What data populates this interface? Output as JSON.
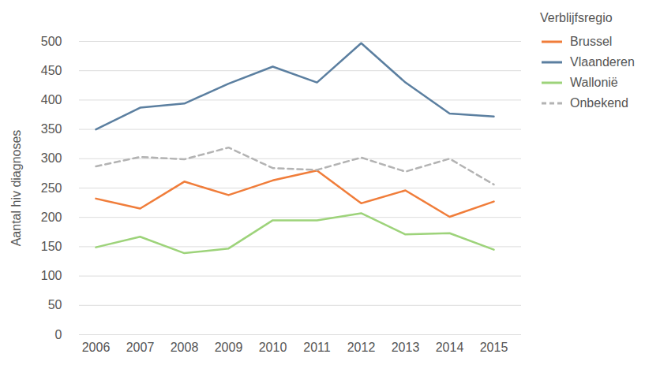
{
  "chart_data": {
    "type": "line",
    "y_label": "Aantal hiv diagnoses",
    "legend_title": "Verblijfsregio",
    "x": [
      2006,
      2007,
      2008,
      2009,
      2010,
      2011,
      2012,
      2013,
      2014,
      2015
    ],
    "xticks": [
      2006,
      2007,
      2008,
      2009,
      2010,
      2011,
      2012,
      2013,
      2014,
      2015
    ],
    "xlim": [
      2006,
      2015
    ],
    "ylim": [
      0,
      500
    ],
    "yticks": [
      0,
      50,
      100,
      150,
      200,
      250,
      300,
      350,
      400,
      450,
      500
    ],
    "grid": true,
    "legend": "right",
    "series": [
      {
        "name": "Brussel",
        "color": "#f07d3a",
        "line_style": "solid",
        "values": [
          232,
          215,
          261,
          238,
          263,
          280,
          224,
          246,
          201,
          227
        ]
      },
      {
        "name": "Vlaanderen",
        "color": "#5b7fa0",
        "line_style": "solid",
        "values": [
          350,
          387,
          394,
          428,
          457,
          430,
          497,
          430,
          377,
          372
        ]
      },
      {
        "name": "Wallonië",
        "color": "#9dd37a",
        "line_style": "solid",
        "values": [
          149,
          167,
          139,
          147,
          195,
          195,
          207,
          171,
          173,
          145
        ]
      },
      {
        "name": "Onbekend",
        "color": "#b3b3b3",
        "line_style": "dashed",
        "values": [
          287,
          303,
          299,
          319,
          284,
          281,
          302,
          278,
          300,
          256
        ]
      }
    ]
  }
}
